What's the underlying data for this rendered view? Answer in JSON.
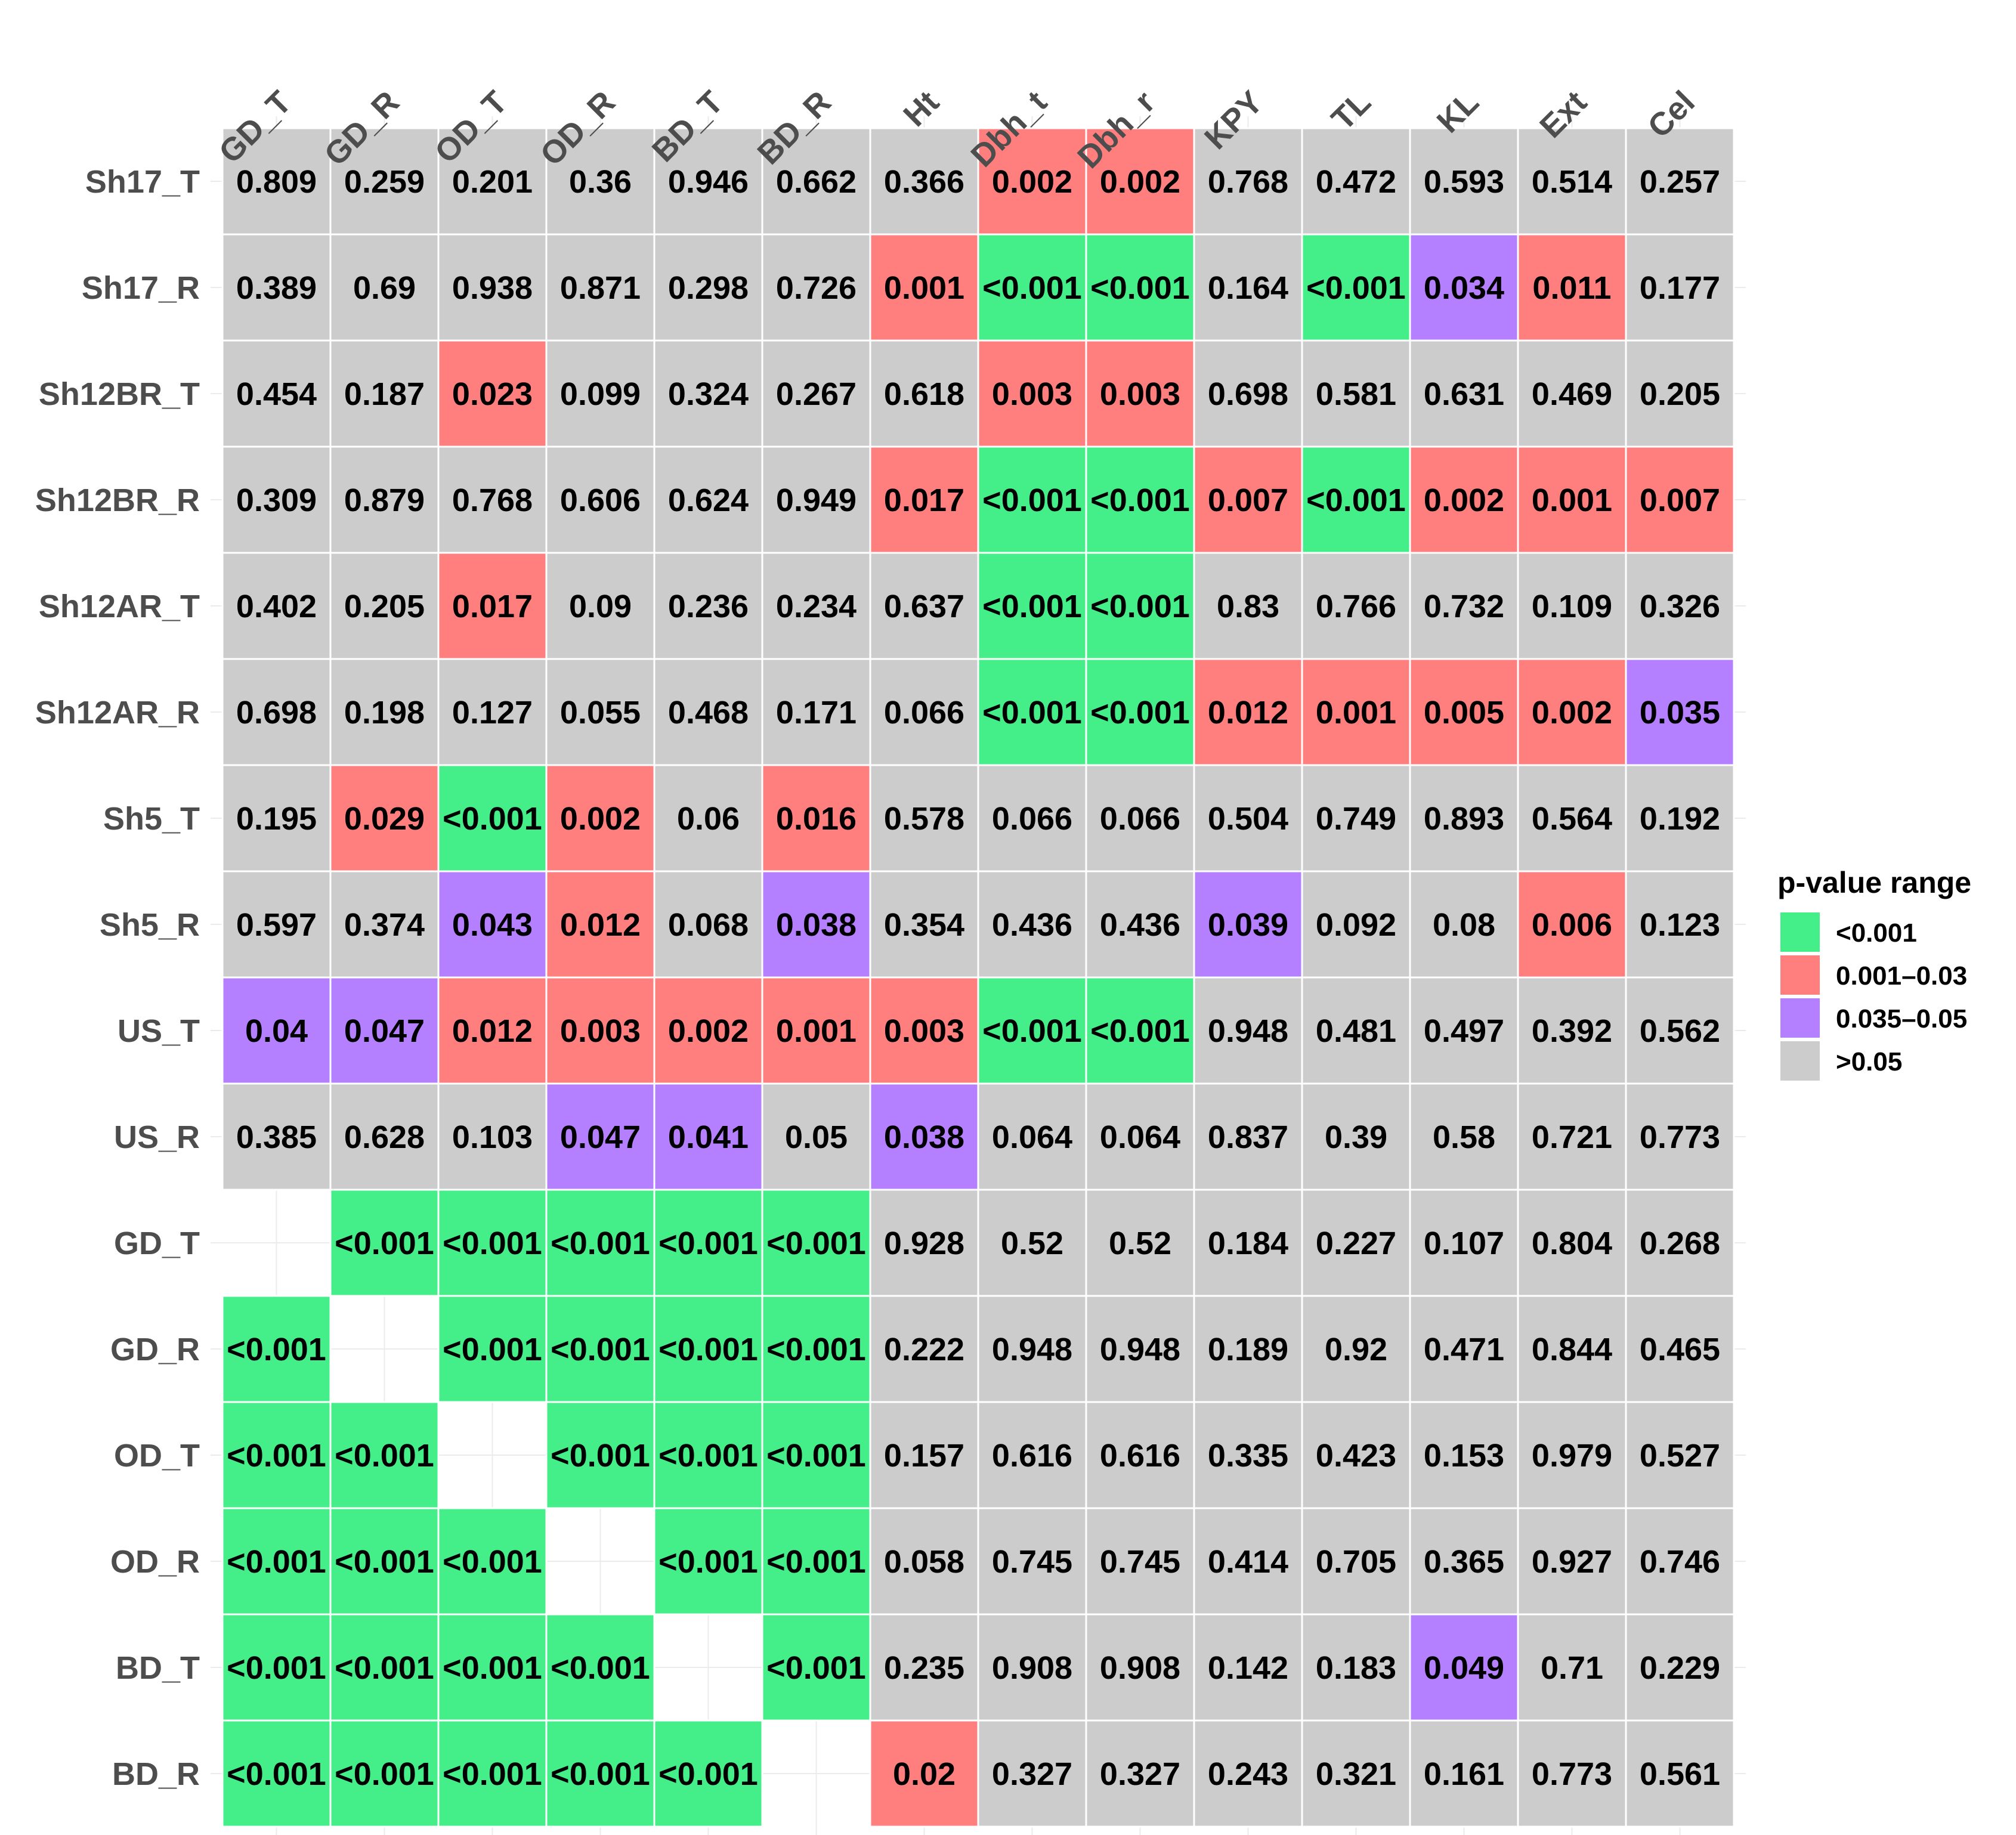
{
  "chart_data": {
    "type": "heatmap",
    "columns": [
      "GD_T",
      "GD_R",
      "OD_T",
      "OD_R",
      "BD_T",
      "BD_R",
      "Ht",
      "Dbh_t",
      "Dbh_r",
      "KPY",
      "TL",
      "KL",
      "Ext",
      "Cel"
    ],
    "rows": [
      "Sh17_T",
      "Sh17_R",
      "Sh12BR_T",
      "Sh12BR_R",
      "Sh12AR_T",
      "Sh12AR_R",
      "Sh5_T",
      "Sh5_R",
      "US_T",
      "US_R",
      "GD_T",
      "GD_R",
      "OD_T",
      "OD_R",
      "BD_T",
      "BD_R"
    ],
    "values": [
      [
        "0.809",
        "0.259",
        "0.201",
        "0.36",
        "0.946",
        "0.662",
        "0.366",
        "0.002",
        "0.002",
        "0.768",
        "0.472",
        "0.593",
        "0.514",
        "0.257"
      ],
      [
        "0.389",
        "0.69",
        "0.938",
        "0.871",
        "0.298",
        "0.726",
        "0.001",
        "<0.001",
        "<0.001",
        "0.164",
        "<0.001",
        "0.034",
        "0.011",
        "0.177"
      ],
      [
        "0.454",
        "0.187",
        "0.023",
        "0.099",
        "0.324",
        "0.267",
        "0.618",
        "0.003",
        "0.003",
        "0.698",
        "0.581",
        "0.631",
        "0.469",
        "0.205"
      ],
      [
        "0.309",
        "0.879",
        "0.768",
        "0.606",
        "0.624",
        "0.949",
        "0.017",
        "<0.001",
        "<0.001",
        "0.007",
        "<0.001",
        "0.002",
        "0.001",
        "0.007"
      ],
      [
        "0.402",
        "0.205",
        "0.017",
        "0.09",
        "0.236",
        "0.234",
        "0.637",
        "<0.001",
        "<0.001",
        "0.83",
        "0.766",
        "0.732",
        "0.109",
        "0.326"
      ],
      [
        "0.698",
        "0.198",
        "0.127",
        "0.055",
        "0.468",
        "0.171",
        "0.066",
        "<0.001",
        "<0.001",
        "0.012",
        "0.001",
        "0.005",
        "0.002",
        "0.035"
      ],
      [
        "0.195",
        "0.029",
        "<0.001",
        "0.002",
        "0.06",
        "0.016",
        "0.578",
        "0.066",
        "0.066",
        "0.504",
        "0.749",
        "0.893",
        "0.564",
        "0.192"
      ],
      [
        "0.597",
        "0.374",
        "0.043",
        "0.012",
        "0.068",
        "0.038",
        "0.354",
        "0.436",
        "0.436",
        "0.039",
        "0.092",
        "0.08",
        "0.006",
        "0.123"
      ],
      [
        "0.04",
        "0.047",
        "0.012",
        "0.003",
        "0.002",
        "0.001",
        "0.003",
        "<0.001",
        "<0.001",
        "0.948",
        "0.481",
        "0.497",
        "0.392",
        "0.562"
      ],
      [
        "0.385",
        "0.628",
        "0.103",
        "0.047",
        "0.041",
        "0.05",
        "0.038",
        "0.064",
        "0.064",
        "0.837",
        "0.39",
        "0.58",
        "0.721",
        "0.773"
      ],
      [
        null,
        "<0.001",
        "<0.001",
        "<0.001",
        "<0.001",
        "<0.001",
        "0.928",
        "0.52",
        "0.52",
        "0.184",
        "0.227",
        "0.107",
        "0.804",
        "0.268"
      ],
      [
        "<0.001",
        null,
        "<0.001",
        "<0.001",
        "<0.001",
        "<0.001",
        "0.222",
        "0.948",
        "0.948",
        "0.189",
        "0.92",
        "0.471",
        "0.844",
        "0.465"
      ],
      [
        "<0.001",
        "<0.001",
        null,
        "<0.001",
        "<0.001",
        "<0.001",
        "0.157",
        "0.616",
        "0.616",
        "0.335",
        "0.423",
        "0.153",
        "0.979",
        "0.527"
      ],
      [
        "<0.001",
        "<0.001",
        "<0.001",
        null,
        "<0.001",
        "<0.001",
        "0.058",
        "0.745",
        "0.745",
        "0.414",
        "0.705",
        "0.365",
        "0.927",
        "0.746"
      ],
      [
        "<0.001",
        "<0.001",
        "<0.001",
        "<0.001",
        null,
        "<0.001",
        "0.235",
        "0.908",
        "0.908",
        "0.142",
        "0.183",
        "0.049",
        "0.71",
        "0.229"
      ],
      [
        "<0.001",
        "<0.001",
        "<0.001",
        "<0.001",
        "<0.001",
        null,
        "0.02",
        "0.327",
        "0.327",
        "0.243",
        "0.321",
        "0.161",
        "0.773",
        "0.561"
      ]
    ],
    "categories_per_cell": [
      [
        "gt",
        "gt",
        "gt",
        "gt",
        "gt",
        "gt",
        "gt",
        "mid",
        "mid",
        "gt",
        "gt",
        "gt",
        "gt",
        "gt"
      ],
      [
        "gt",
        "gt",
        "gt",
        "gt",
        "gt",
        "gt",
        "mid",
        "lt",
        "lt",
        "gt",
        "lt",
        "hi",
        "mid",
        "gt"
      ],
      [
        "gt",
        "gt",
        "mid",
        "gt",
        "gt",
        "gt",
        "gt",
        "mid",
        "mid",
        "gt",
        "gt",
        "gt",
        "gt",
        "gt"
      ],
      [
        "gt",
        "gt",
        "gt",
        "gt",
        "gt",
        "gt",
        "mid",
        "lt",
        "lt",
        "mid",
        "lt",
        "mid",
        "mid",
        "mid"
      ],
      [
        "gt",
        "gt",
        "mid",
        "gt",
        "gt",
        "gt",
        "gt",
        "lt",
        "lt",
        "gt",
        "gt",
        "gt",
        "gt",
        "gt"
      ],
      [
        "gt",
        "gt",
        "gt",
        "gt",
        "gt",
        "gt",
        "gt",
        "lt",
        "lt",
        "mid",
        "mid",
        "mid",
        "mid",
        "hi"
      ],
      [
        "gt",
        "mid",
        "lt",
        "mid",
        "gt",
        "mid",
        "gt",
        "gt",
        "gt",
        "gt",
        "gt",
        "gt",
        "gt",
        "gt"
      ],
      [
        "gt",
        "gt",
        "hi",
        "mid",
        "gt",
        "hi",
        "gt",
        "gt",
        "gt",
        "hi",
        "gt",
        "gt",
        "mid",
        "gt"
      ],
      [
        "hi",
        "hi",
        "mid",
        "mid",
        "mid",
        "mid",
        "mid",
        "lt",
        "lt",
        "gt",
        "gt",
        "gt",
        "gt",
        "gt"
      ],
      [
        "gt",
        "gt",
        "gt",
        "hi",
        "hi",
        "gt",
        "hi",
        "gt",
        "gt",
        "gt",
        "gt",
        "gt",
        "gt",
        "gt"
      ],
      [
        null,
        "lt",
        "lt",
        "lt",
        "lt",
        "lt",
        "gt",
        "gt",
        "gt",
        "gt",
        "gt",
        "gt",
        "gt",
        "gt"
      ],
      [
        "lt",
        null,
        "lt",
        "lt",
        "lt",
        "lt",
        "gt",
        "gt",
        "gt",
        "gt",
        "gt",
        "gt",
        "gt",
        "gt"
      ],
      [
        "lt",
        "lt",
        null,
        "lt",
        "lt",
        "lt",
        "gt",
        "gt",
        "gt",
        "gt",
        "gt",
        "gt",
        "gt",
        "gt"
      ],
      [
        "lt",
        "lt",
        "lt",
        null,
        "lt",
        "lt",
        "gt",
        "gt",
        "gt",
        "gt",
        "gt",
        "gt",
        "gt",
        "gt"
      ],
      [
        "lt",
        "lt",
        "lt",
        "lt",
        null,
        "lt",
        "gt",
        "gt",
        "gt",
        "gt",
        "gt",
        "hi",
        "gt",
        "gt"
      ],
      [
        "lt",
        "lt",
        "lt",
        "lt",
        "lt",
        null,
        "mid",
        "gt",
        "gt",
        "gt",
        "gt",
        "gt",
        "gt",
        "gt"
      ]
    ],
    "legend": {
      "title": "p-value range",
      "position": "right",
      "items": [
        {
          "key": "lt",
          "label": "<0.001",
          "color": "#44EE88"
        },
        {
          "key": "mid",
          "label": "0.001–0.03",
          "color": "#FF7F7F"
        },
        {
          "key": "hi",
          "label": "0.035–0.05",
          "color": "#B580FF"
        },
        {
          "key": "gt",
          "label": ">0.05",
          "color": "#CCCCCC"
        }
      ]
    },
    "grid": true
  }
}
